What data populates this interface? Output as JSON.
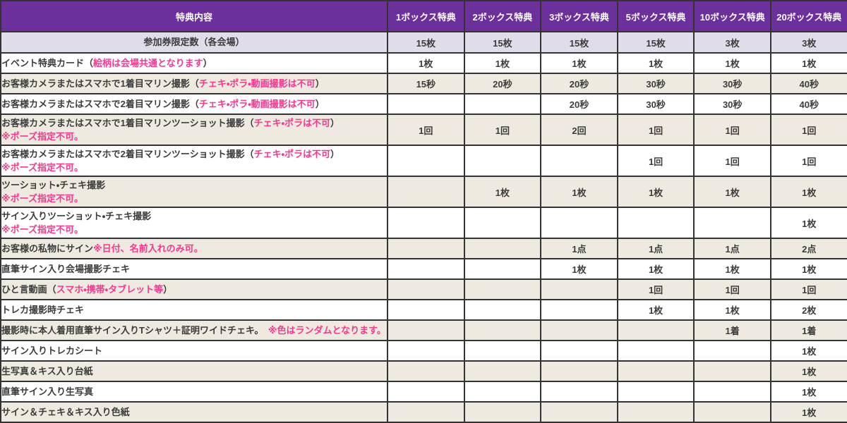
{
  "colors": {
    "header_purple": "#6b309c",
    "limit_lavender": "#e1dcea",
    "row_cream": "#eeeadf",
    "row_white": "#ffffff",
    "border_dark": "#333333",
    "text_dark": "#3c3c3c",
    "accent_pink": "#f93690"
  },
  "table": {
    "header": {
      "benefit_col": "特典内容",
      "box_cols": [
        "1ボックス特典",
        "2ボックス特典",
        "3ボックス特典",
        "5ボックス特典",
        "10ボックス特典",
        "20ボックス特典"
      ]
    },
    "limit_row": {
      "label": "参加券限定数（各会場）",
      "values": [
        "15枚",
        "15枚",
        "15枚",
        "15枚",
        "3枚",
        "3枚"
      ]
    },
    "rows": [
      {
        "label": [
          {
            "t": "イベント特典カード（",
            "p": false
          },
          {
            "t": "絵柄は会場共通となります",
            "p": true
          },
          {
            "t": "）",
            "p": false
          }
        ],
        "values": [
          "1枚",
          "1枚",
          "1枚",
          "1枚",
          "1枚",
          "1枚"
        ],
        "shade": false
      },
      {
        "label": [
          {
            "t": "お客様カメラまたはスマホで1着目マリン撮影（",
            "p": false
          },
          {
            "t": "チェキ・ポラ・動画撮影は不可",
            "p": true
          },
          {
            "t": "）",
            "p": false
          }
        ],
        "values": [
          "15秒",
          "20秒",
          "20秒",
          "30秒",
          "30秒",
          "40秒"
        ],
        "shade": true
      },
      {
        "label": [
          {
            "t": "お客様カメラまたはスマホで2着目マリン撮影（",
            "p": false
          },
          {
            "t": "チェキ・ポラ・動画撮影は不可",
            "p": true
          },
          {
            "t": "）",
            "p": false
          }
        ],
        "values": [
          "",
          "",
          "20秒",
          "30秒",
          "30秒",
          "40秒"
        ],
        "shade": false
      },
      {
        "label": [
          {
            "t": "お客様カメラまたはスマホで1着目マリンツーショット撮影（",
            "p": false
          },
          {
            "t": "チェキ・ポラは不可",
            "p": true
          },
          {
            "t": "）",
            "p": false
          }
        ],
        "line2": [
          {
            "t": "※ポーズ指定不可。",
            "p": true
          }
        ],
        "values": [
          "1回",
          "1回",
          "2回",
          "1回",
          "1回",
          "1回"
        ],
        "shade": true
      },
      {
        "label": [
          {
            "t": "お客様カメラまたはスマホで2着目マリンツーショット撮影（",
            "p": false
          },
          {
            "t": "チェキ・ポラは不可",
            "p": true
          },
          {
            "t": "）",
            "p": false
          }
        ],
        "line2": [
          {
            "t": "※ポーズ指定不可。",
            "p": true
          }
        ],
        "values": [
          "",
          "",
          "",
          "1回",
          "1回",
          "1回"
        ],
        "shade": false
      },
      {
        "label": [
          {
            "t": "ツーショット・チェキ撮影",
            "p": false
          }
        ],
        "line2": [
          {
            "t": "※ポーズ指定不可。",
            "p": true
          }
        ],
        "values": [
          "",
          "1枚",
          "1枚",
          "1枚",
          "1枚",
          "1枚"
        ],
        "shade": true
      },
      {
        "label": [
          {
            "t": "サイン入りツーショット・チェキ撮影",
            "p": false
          }
        ],
        "line2": [
          {
            "t": "※ポーズ指定不可。",
            "p": true
          }
        ],
        "values": [
          "",
          "",
          "",
          "",
          "",
          "1枚"
        ],
        "shade": false
      },
      {
        "label": [
          {
            "t": "お客様の私物にサイン",
            "p": false
          },
          {
            "t": "※日付、名前入れのみ可。",
            "p": true
          }
        ],
        "values": [
          "",
          "",
          "1点",
          "1点",
          "1点",
          "2点"
        ],
        "shade": true
      },
      {
        "label": [
          {
            "t": "直筆サイン入り会場撮影チェキ",
            "p": false
          }
        ],
        "values": [
          "",
          "",
          "1枚",
          "1枚",
          "1枚",
          "1枚"
        ],
        "shade": false
      },
      {
        "label": [
          {
            "t": "ひと言動画（",
            "p": false
          },
          {
            "t": "スマホ・携帯・タブレット等",
            "p": true
          },
          {
            "t": "）",
            "p": false
          }
        ],
        "values": [
          "",
          "",
          "",
          "1回",
          "1回",
          "1回"
        ],
        "shade": true
      },
      {
        "label": [
          {
            "t": "トレカ撮影時チェキ",
            "p": false
          }
        ],
        "values": [
          "",
          "",
          "",
          "1枚",
          "1枚",
          "2枚"
        ],
        "shade": false
      },
      {
        "label": [
          {
            "t": "撮影時に本人着用直筆サイン入りTシャツ＋証明ワイドチェキ。　",
            "p": false
          },
          {
            "t": "※色はランダムとなります。",
            "p": true
          }
        ],
        "values": [
          "",
          "",
          "",
          "",
          "1着",
          "1着"
        ],
        "shade": true
      },
      {
        "label": [
          {
            "t": "サイン入りトレカシート",
            "p": false
          }
        ],
        "values": [
          "",
          "",
          "",
          "",
          "",
          "1枚"
        ],
        "shade": false
      },
      {
        "label": [
          {
            "t": "生写真＆キス入り台紙",
            "p": false
          }
        ],
        "values": [
          "",
          "",
          "",
          "",
          "",
          "1枚"
        ],
        "shade": true
      },
      {
        "label": [
          {
            "t": "直筆サイン入り生写真",
            "p": false
          }
        ],
        "values": [
          "",
          "",
          "",
          "",
          "",
          "1枚"
        ],
        "shade": false
      },
      {
        "label": [
          {
            "t": "サイン＆チェキ＆キス入り色紙",
            "p": false
          }
        ],
        "values": [
          "",
          "",
          "",
          "",
          "",
          "1枚"
        ],
        "shade": true
      }
    ]
  }
}
